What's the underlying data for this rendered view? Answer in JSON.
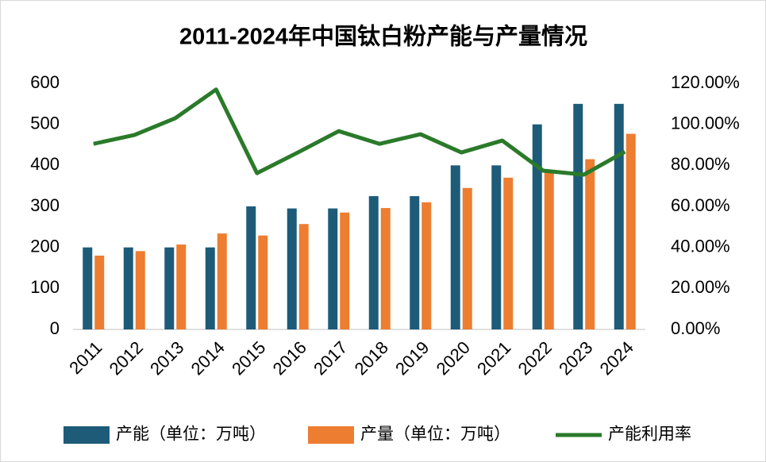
{
  "chart_data": {
    "type": "bar",
    "title": "2011-2024年中国钛白粉产能与产量情况",
    "categories": [
      "2011",
      "2012",
      "2013",
      "2014",
      "2015",
      "2016",
      "2017",
      "2018",
      "2019",
      "2020",
      "2021",
      "2022",
      "2023",
      "2024"
    ],
    "series": [
      {
        "name": "产能（单位：万吨）",
        "color": "#1d5b79",
        "type": "bar",
        "values": [
          200,
          200,
          200,
          200,
          300,
          295,
          295,
          325,
          325,
          400,
          400,
          500,
          550,
          550
        ]
      },
      {
        "name": "产量（单位：万吨）",
        "color": "#ed7d31",
        "type": "bar",
        "values": [
          180,
          191,
          207,
          234,
          229,
          257,
          285,
          296,
          310,
          345,
          370,
          387,
          415,
          477
        ]
      },
      {
        "name": "产能利用率",
        "color": "#2a7a2a",
        "type": "line",
        "axis": "y2",
        "values": [
          90.5,
          94.8,
          103,
          117,
          76.2,
          86.3,
          96.7,
          90.5,
          95.2,
          86.3,
          92.1,
          77.4,
          75.5,
          86.7
        ]
      }
    ],
    "ylim": [
      0,
      600
    ],
    "yticks": [
      0,
      100,
      200,
      300,
      400,
      500,
      600
    ],
    "y2lim": [
      0,
      120
    ],
    "y2ticks": [
      {
        "value": 0,
        "label": "0.00%"
      },
      {
        "value": 20,
        "label": "20.00%"
      },
      {
        "value": 40,
        "label": "40.00%"
      },
      {
        "value": 60,
        "label": "60.00%"
      },
      {
        "value": 80,
        "label": "80.00%"
      },
      {
        "value": 100,
        "label": "100.00%"
      },
      {
        "value": 120,
        "label": "120.00%"
      }
    ],
    "grid": false,
    "legend": "bottom"
  }
}
